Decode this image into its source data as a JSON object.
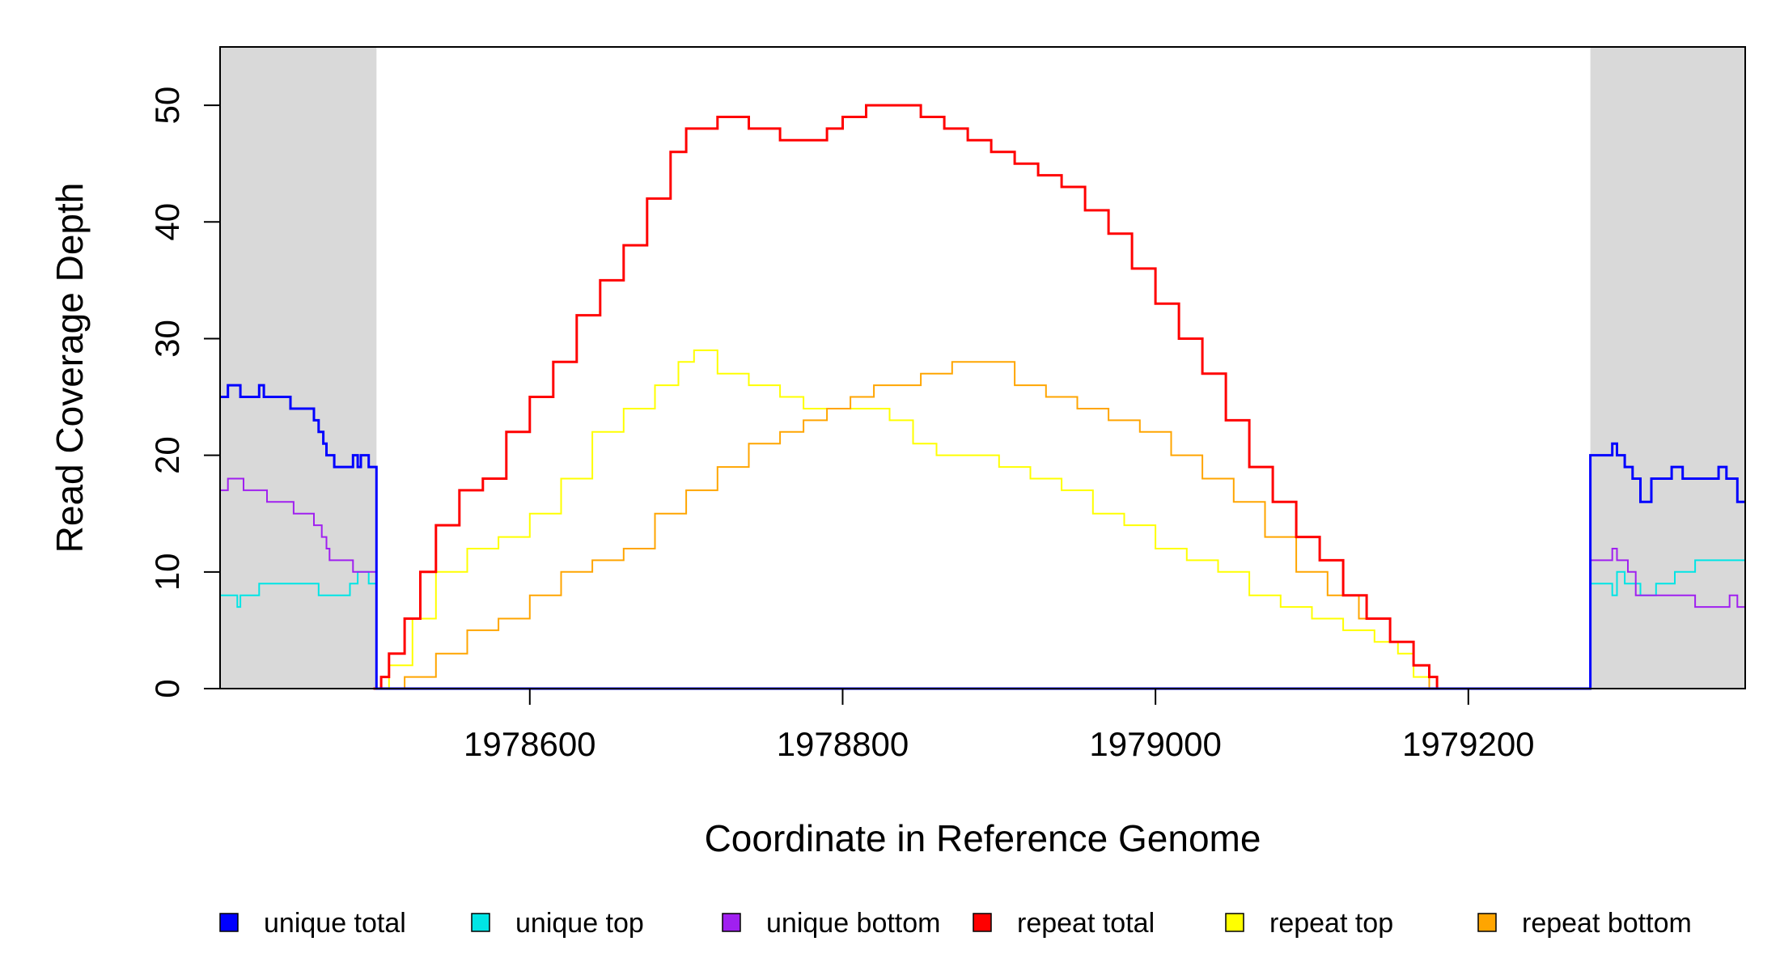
{
  "chart_data": {
    "type": "line",
    "title": "",
    "xlabel": "Coordinate in Reference Genome",
    "ylabel": "Read Coverage Depth",
    "xlim": [
      1978402,
      1979377
    ],
    "ylim": [
      0,
      55
    ],
    "x_ticks": [
      1978600,
      1978800,
      1979000,
      1979200
    ],
    "y_ticks": [
      0,
      10,
      20,
      30,
      40,
      50
    ],
    "grid": false,
    "legend_position": "bottom",
    "unique_regions": [
      [
        1978402,
        1978502
      ],
      [
        1979278,
        1979377
      ]
    ],
    "series": [
      {
        "name": "unique total",
        "color": "#0000ff",
        "points": [
          [
            1978402,
            25
          ],
          [
            1978407,
            26
          ],
          [
            1978415,
            25
          ],
          [
            1978427,
            26
          ],
          [
            1978430,
            25
          ],
          [
            1978447,
            24
          ],
          [
            1978462,
            23
          ],
          [
            1978465,
            22
          ],
          [
            1978468,
            21
          ],
          [
            1978470,
            20
          ],
          [
            1978475,
            19
          ],
          [
            1978487,
            20
          ],
          [
            1978490,
            19
          ],
          [
            1978492,
            20
          ],
          [
            1978497,
            19
          ],
          [
            1978502,
            19
          ],
          [
            1978502,
            0
          ],
          [
            1979278,
            0
          ],
          [
            1979278,
            20
          ],
          [
            1979292,
            21
          ],
          [
            1979295,
            20
          ],
          [
            1979300,
            19
          ],
          [
            1979305,
            18
          ],
          [
            1979310,
            16
          ],
          [
            1979317,
            18
          ],
          [
            1979330,
            19
          ],
          [
            1979337,
            18
          ],
          [
            1979360,
            19
          ],
          [
            1979365,
            18
          ],
          [
            1979372,
            16
          ],
          [
            1979377,
            16
          ]
        ]
      },
      {
        "name": "unique top",
        "color": "#00e5e5",
        "points": [
          [
            1978402,
            8
          ],
          [
            1978413,
            7
          ],
          [
            1978415,
            8
          ],
          [
            1978427,
            9
          ],
          [
            1978465,
            8
          ],
          [
            1978485,
            9
          ],
          [
            1978490,
            10
          ],
          [
            1978497,
            9
          ],
          [
            1978502,
            9
          ],
          [
            1978502,
            0
          ],
          [
            1979278,
            0
          ],
          [
            1979278,
            9
          ],
          [
            1979292,
            8
          ],
          [
            1979295,
            10
          ],
          [
            1979300,
            9
          ],
          [
            1979310,
            8
          ],
          [
            1979320,
            9
          ],
          [
            1979332,
            10
          ],
          [
            1979345,
            11
          ],
          [
            1979377,
            11
          ]
        ]
      },
      {
        "name": "unique bottom",
        "color": "#a020f0",
        "points": [
          [
            1978402,
            17
          ],
          [
            1978407,
            18
          ],
          [
            1978417,
            17
          ],
          [
            1978432,
            16
          ],
          [
            1978449,
            15
          ],
          [
            1978462,
            14
          ],
          [
            1978467,
            13
          ],
          [
            1978470,
            12
          ],
          [
            1978472,
            11
          ],
          [
            1978487,
            10
          ],
          [
            1978502,
            10
          ],
          [
            1978502,
            0
          ],
          [
            1979278,
            0
          ],
          [
            1979278,
            11
          ],
          [
            1979292,
            12
          ],
          [
            1979295,
            11
          ],
          [
            1979302,
            10
          ],
          [
            1979307,
            8
          ],
          [
            1979325,
            8
          ],
          [
            1979345,
            7
          ],
          [
            1979367,
            8
          ],
          [
            1979372,
            7
          ],
          [
            1979377,
            5
          ]
        ]
      },
      {
        "name": "repeat total",
        "color": "#ff0000",
        "points": [
          [
            1978500,
            0
          ],
          [
            1978505,
            1
          ],
          [
            1978510,
            3
          ],
          [
            1978520,
            6
          ],
          [
            1978530,
            10
          ],
          [
            1978540,
            14
          ],
          [
            1978555,
            17
          ],
          [
            1978570,
            18
          ],
          [
            1978585,
            22
          ],
          [
            1978600,
            25
          ],
          [
            1978615,
            28
          ],
          [
            1978630,
            32
          ],
          [
            1978645,
            35
          ],
          [
            1978660,
            38
          ],
          [
            1978675,
            42
          ],
          [
            1978690,
            46
          ],
          [
            1978700,
            48
          ],
          [
            1978720,
            49
          ],
          [
            1978740,
            48
          ],
          [
            1978760,
            47
          ],
          [
            1978780,
            47
          ],
          [
            1978790,
            48
          ],
          [
            1978800,
            49
          ],
          [
            1978815,
            50
          ],
          [
            1978830,
            50
          ],
          [
            1978850,
            49
          ],
          [
            1978865,
            48
          ],
          [
            1978880,
            47
          ],
          [
            1978895,
            46
          ],
          [
            1978910,
            45
          ],
          [
            1978925,
            44
          ],
          [
            1978940,
            43
          ],
          [
            1978955,
            41
          ],
          [
            1978970,
            39
          ],
          [
            1978985,
            36
          ],
          [
            1979000,
            33
          ],
          [
            1979015,
            30
          ],
          [
            1979030,
            27
          ],
          [
            1979045,
            23
          ],
          [
            1979060,
            19
          ],
          [
            1979075,
            16
          ],
          [
            1979090,
            13
          ],
          [
            1979105,
            11
          ],
          [
            1979120,
            8
          ],
          [
            1979135,
            6
          ],
          [
            1979150,
            4
          ],
          [
            1979165,
            2
          ],
          [
            1979175,
            1
          ],
          [
            1979180,
            0
          ]
        ]
      },
      {
        "name": "repeat top",
        "color": "#ffff00",
        "points": [
          [
            1978500,
            0
          ],
          [
            1978510,
            2
          ],
          [
            1978525,
            6
          ],
          [
            1978540,
            10
          ],
          [
            1978560,
            12
          ],
          [
            1978580,
            13
          ],
          [
            1978600,
            15
          ],
          [
            1978620,
            18
          ],
          [
            1978640,
            22
          ],
          [
            1978660,
            24
          ],
          [
            1978680,
            26
          ],
          [
            1978695,
            28
          ],
          [
            1978705,
            29
          ],
          [
            1978720,
            27
          ],
          [
            1978740,
            26
          ],
          [
            1978760,
            25
          ],
          [
            1978775,
            24
          ],
          [
            1978790,
            24
          ],
          [
            1978810,
            24
          ],
          [
            1978830,
            23
          ],
          [
            1978845,
            21
          ],
          [
            1978860,
            20
          ],
          [
            1978880,
            20
          ],
          [
            1978900,
            19
          ],
          [
            1978920,
            18
          ],
          [
            1978940,
            17
          ],
          [
            1978960,
            15
          ],
          [
            1978980,
            14
          ],
          [
            1979000,
            12
          ],
          [
            1979020,
            11
          ],
          [
            1979040,
            10
          ],
          [
            1979060,
            8
          ],
          [
            1979080,
            7
          ],
          [
            1979100,
            6
          ],
          [
            1979120,
            5
          ],
          [
            1979140,
            4
          ],
          [
            1979155,
            3
          ],
          [
            1979165,
            1
          ],
          [
            1979175,
            0
          ]
        ]
      },
      {
        "name": "repeat bottom",
        "color": "#ffa500",
        "points": [
          [
            1978500,
            0
          ],
          [
            1978520,
            1
          ],
          [
            1978540,
            3
          ],
          [
            1978560,
            5
          ],
          [
            1978580,
            6
          ],
          [
            1978600,
            8
          ],
          [
            1978620,
            10
          ],
          [
            1978640,
            11
          ],
          [
            1978660,
            12
          ],
          [
            1978680,
            15
          ],
          [
            1978700,
            17
          ],
          [
            1978720,
            19
          ],
          [
            1978740,
            21
          ],
          [
            1978760,
            22
          ],
          [
            1978775,
            23
          ],
          [
            1978790,
            24
          ],
          [
            1978805,
            25
          ],
          [
            1978820,
            26
          ],
          [
            1978835,
            26
          ],
          [
            1978850,
            27
          ],
          [
            1978870,
            28
          ],
          [
            1978890,
            28
          ],
          [
            1978910,
            26
          ],
          [
            1978930,
            25
          ],
          [
            1978950,
            24
          ],
          [
            1978970,
            23
          ],
          [
            1978990,
            22
          ],
          [
            1979010,
            20
          ],
          [
            1979030,
            18
          ],
          [
            1979050,
            16
          ],
          [
            1979070,
            13
          ],
          [
            1979090,
            10
          ],
          [
            1979110,
            8
          ],
          [
            1979130,
            6
          ],
          [
            1979150,
            4
          ],
          [
            1979165,
            2
          ],
          [
            1979175,
            0
          ]
        ]
      }
    ]
  }
}
